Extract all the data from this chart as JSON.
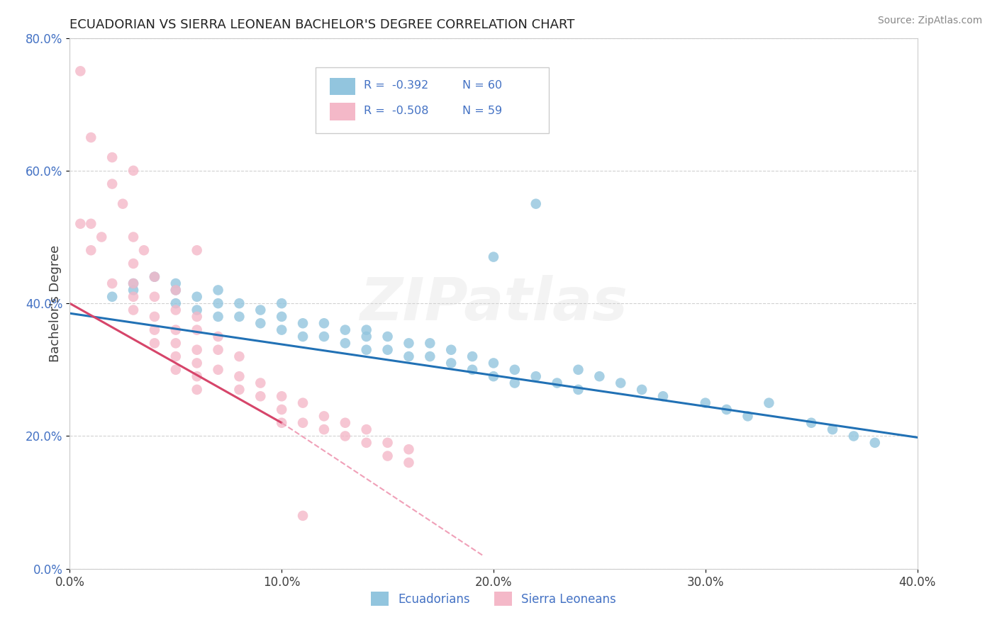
{
  "title": "ECUADORIAN VS SIERRA LEONEAN BACHELOR'S DEGREE CORRELATION CHART",
  "source": "Source: ZipAtlas.com",
  "ylabel": "Bachelor's Degree",
  "xlim": [
    0.0,
    0.4
  ],
  "ylim": [
    0.0,
    0.8
  ],
  "xticks": [
    0.0,
    0.1,
    0.2,
    0.3,
    0.4
  ],
  "yticks": [
    0.0,
    0.2,
    0.4,
    0.6,
    0.8
  ],
  "legend_r1": "-0.392",
  "legend_n1": "60",
  "legend_r2": "-0.508",
  "legend_n2": "59",
  "ecuadorian_color": "#92C5DE",
  "sierralone_color": "#F4B8C8",
  "trend_blue": "#2171B5",
  "trend_pink": "#D6456A",
  "trend_pink_dashed": "#F0A0B8",
  "watermark": "ZIPatlas",
  "background": "#ffffff",
  "text_color_blue": "#4472C4",
  "text_color_dark": "#404040",
  "ecuadorian_x": [
    0.02,
    0.03,
    0.03,
    0.04,
    0.05,
    0.05,
    0.05,
    0.06,
    0.06,
    0.07,
    0.07,
    0.07,
    0.08,
    0.08,
    0.09,
    0.09,
    0.1,
    0.1,
    0.1,
    0.11,
    0.11,
    0.12,
    0.12,
    0.13,
    0.13,
    0.14,
    0.14,
    0.14,
    0.15,
    0.15,
    0.16,
    0.16,
    0.17,
    0.17,
    0.18,
    0.18,
    0.19,
    0.19,
    0.2,
    0.2,
    0.21,
    0.21,
    0.22,
    0.23,
    0.24,
    0.24,
    0.25,
    0.26,
    0.27,
    0.28,
    0.3,
    0.31,
    0.32,
    0.33,
    0.35,
    0.36,
    0.37,
    0.38,
    0.22,
    0.2
  ],
  "ecuadorian_y": [
    0.41,
    0.43,
    0.42,
    0.44,
    0.4,
    0.43,
    0.42,
    0.41,
    0.39,
    0.4,
    0.38,
    0.42,
    0.38,
    0.4,
    0.37,
    0.39,
    0.36,
    0.38,
    0.4,
    0.35,
    0.37,
    0.35,
    0.37,
    0.34,
    0.36,
    0.35,
    0.33,
    0.36,
    0.33,
    0.35,
    0.34,
    0.32,
    0.34,
    0.32,
    0.33,
    0.31,
    0.32,
    0.3,
    0.31,
    0.29,
    0.3,
    0.28,
    0.29,
    0.28,
    0.27,
    0.3,
    0.29,
    0.28,
    0.27,
    0.26,
    0.25,
    0.24,
    0.23,
    0.25,
    0.22,
    0.21,
    0.2,
    0.19,
    0.55,
    0.47
  ],
  "sierralone_x": [
    0.005,
    0.005,
    0.01,
    0.01,
    0.01,
    0.015,
    0.02,
    0.02,
    0.02,
    0.025,
    0.03,
    0.03,
    0.03,
    0.03,
    0.03,
    0.035,
    0.04,
    0.04,
    0.04,
    0.04,
    0.04,
    0.05,
    0.05,
    0.05,
    0.05,
    0.05,
    0.05,
    0.06,
    0.06,
    0.06,
    0.06,
    0.06,
    0.06,
    0.07,
    0.07,
    0.07,
    0.08,
    0.08,
    0.08,
    0.09,
    0.09,
    0.1,
    0.1,
    0.1,
    0.11,
    0.11,
    0.12,
    0.12,
    0.13,
    0.13,
    0.14,
    0.14,
    0.15,
    0.15,
    0.16,
    0.16,
    0.03,
    0.06,
    0.11
  ],
  "sierralone_y": [
    0.75,
    0.52,
    0.65,
    0.52,
    0.48,
    0.5,
    0.62,
    0.58,
    0.43,
    0.55,
    0.5,
    0.46,
    0.43,
    0.41,
    0.39,
    0.48,
    0.44,
    0.41,
    0.38,
    0.36,
    0.34,
    0.42,
    0.39,
    0.36,
    0.34,
    0.32,
    0.3,
    0.38,
    0.36,
    0.33,
    0.31,
    0.29,
    0.27,
    0.35,
    0.33,
    0.3,
    0.32,
    0.29,
    0.27,
    0.28,
    0.26,
    0.26,
    0.24,
    0.22,
    0.25,
    0.22,
    0.23,
    0.21,
    0.22,
    0.2,
    0.21,
    0.19,
    0.19,
    0.17,
    0.18,
    0.16,
    0.6,
    0.48,
    0.08
  ]
}
